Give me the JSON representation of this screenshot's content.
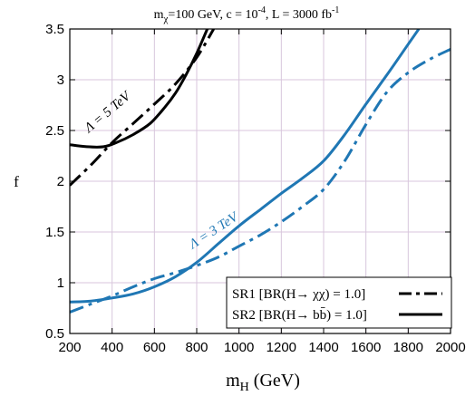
{
  "chart_data": {
    "type": "line",
    "title": {
      "prefix": "m",
      "prefix_sub": "χ",
      "main": "=100 GeV, c = 10",
      "exp": "-4",
      "mid": ", L = 3000 fb",
      "exp2": "-1"
    },
    "xlabel": {
      "main": "m",
      "sub": "H",
      "unit": " (GeV)"
    },
    "ylabel": "f",
    "xlim": [
      200,
      2000
    ],
    "ylim": [
      0.5,
      3.5
    ],
    "xticks": [
      "200",
      "400",
      "600",
      "800",
      "1000",
      "1200",
      "1400",
      "1600",
      "1800",
      "2000"
    ],
    "yticks": [
      "0.5",
      "1",
      "1.5",
      "2",
      "2.5",
      "3",
      "3.5"
    ],
    "grid": true,
    "legend_position": "bottom-right",
    "legend": [
      {
        "text": "SR1 [BR(H→ χχ) = 1.0]",
        "style": "dash-dot"
      },
      {
        "text": "SR2 [BR(H→ bb̄) = 1.0]",
        "style": "solid"
      }
    ],
    "annotations": [
      {
        "text": "Λ = 5 TeV",
        "color": "#000000",
        "x": 390,
        "y": 2.65,
        "angle": -40
      },
      {
        "text": "Λ = 3 TeV",
        "color": "#1f77b4",
        "x": 890,
        "y": 1.48,
        "angle": -33
      }
    ],
    "series": [
      {
        "group": "Λ = 5 TeV",
        "region": "SR1",
        "style": "dash-dot",
        "color": "#000000",
        "points": [
          [
            200,
            1.96
          ],
          [
            300,
            2.16
          ],
          [
            400,
            2.38
          ],
          [
            500,
            2.57
          ],
          [
            600,
            2.76
          ],
          [
            700,
            2.96
          ],
          [
            800,
            3.22
          ],
          [
            880,
            3.5
          ]
        ]
      },
      {
        "group": "Λ = 5 TeV",
        "region": "SR2",
        "style": "solid",
        "color": "#000000",
        "points": [
          [
            200,
            2.36
          ],
          [
            280,
            2.34
          ],
          [
            360,
            2.34
          ],
          [
            420,
            2.38
          ],
          [
            500,
            2.46
          ],
          [
            580,
            2.57
          ],
          [
            650,
            2.73
          ],
          [
            700,
            2.87
          ],
          [
            750,
            3.05
          ],
          [
            800,
            3.26
          ],
          [
            850,
            3.5
          ]
        ]
      },
      {
        "group": "Λ = 3 TeV",
        "region": "SR1",
        "style": "dash-dot",
        "color": "#1f77b4",
        "points": [
          [
            200,
            0.71
          ],
          [
            300,
            0.79
          ],
          [
            400,
            0.87
          ],
          [
            500,
            0.96
          ],
          [
            600,
            1.04
          ],
          [
            700,
            1.1
          ],
          [
            800,
            1.17
          ],
          [
            900,
            1.25
          ],
          [
            1000,
            1.36
          ],
          [
            1100,
            1.47
          ],
          [
            1200,
            1.6
          ],
          [
            1300,
            1.75
          ],
          [
            1400,
            1.92
          ],
          [
            1500,
            2.2
          ],
          [
            1600,
            2.56
          ],
          [
            1700,
            2.88
          ],
          [
            1800,
            3.07
          ],
          [
            1900,
            3.2
          ],
          [
            2000,
            3.3
          ]
        ]
      },
      {
        "group": "Λ = 3 TeV",
        "region": "SR2",
        "style": "solid",
        "color": "#1f77b4",
        "points": [
          [
            200,
            0.81
          ],
          [
            300,
            0.82
          ],
          [
            400,
            0.85
          ],
          [
            500,
            0.89
          ],
          [
            600,
            0.96
          ],
          [
            700,
            1.06
          ],
          [
            800,
            1.2
          ],
          [
            900,
            1.38
          ],
          [
            1000,
            1.56
          ],
          [
            1100,
            1.72
          ],
          [
            1200,
            1.88
          ],
          [
            1300,
            2.03
          ],
          [
            1400,
            2.2
          ],
          [
            1500,
            2.46
          ],
          [
            1600,
            2.76
          ],
          [
            1700,
            3.05
          ],
          [
            1800,
            3.35
          ],
          [
            1850,
            3.5
          ]
        ]
      }
    ]
  }
}
